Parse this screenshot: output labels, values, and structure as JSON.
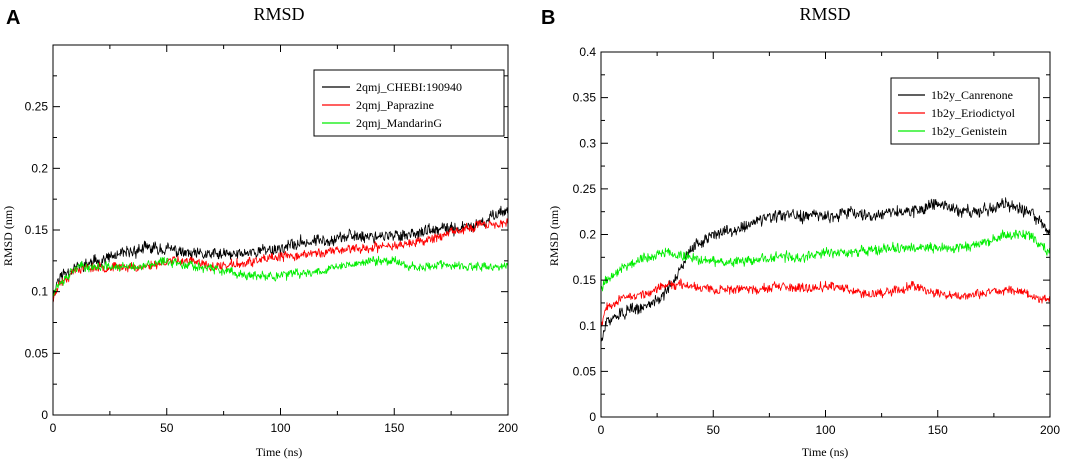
{
  "chart_data": [
    {
      "panel_letter": "A",
      "type": "line",
      "title": "RMSD",
      "xlabel": "Time (ns)",
      "ylabel": "RMSD (nm)",
      "xlim": [
        0,
        200
      ],
      "ylim": [
        0,
        0.3
      ],
      "xticks": [
        0,
        50,
        100,
        150,
        200
      ],
      "yticks": [
        0,
        0.05,
        0.1,
        0.15,
        0.2,
        0.25
      ],
      "ytick_labels": [
        "0",
        "0.05",
        "0.1",
        "0.15",
        "0.2",
        "0.25"
      ],
      "legend_position": "top-right",
      "series": [
        {
          "name": "2qmj_CHEBI:190940",
          "color": "#000000",
          "x": [
            0,
            2,
            5,
            10,
            20,
            30,
            40,
            50,
            60,
            70,
            80,
            90,
            100,
            110,
            120,
            130,
            140,
            150,
            160,
            170,
            180,
            190,
            195,
            200
          ],
          "y": [
            0.095,
            0.11,
            0.115,
            0.12,
            0.125,
            0.13,
            0.135,
            0.135,
            0.13,
            0.13,
            0.13,
            0.133,
            0.135,
            0.14,
            0.142,
            0.145,
            0.145,
            0.145,
            0.148,
            0.15,
            0.152,
            0.155,
            0.165,
            0.165
          ],
          "noise": 0.008,
          "seed": 11
        },
        {
          "name": "2qmj_Paprazine",
          "color": "#ff0000",
          "x": [
            0,
            2,
            5,
            10,
            20,
            30,
            40,
            50,
            60,
            70,
            80,
            90,
            100,
            110,
            120,
            130,
            140,
            150,
            160,
            170,
            180,
            190,
            195,
            200
          ],
          "y": [
            0.092,
            0.105,
            0.11,
            0.118,
            0.12,
            0.12,
            0.12,
            0.125,
            0.125,
            0.12,
            0.122,
            0.125,
            0.128,
            0.13,
            0.132,
            0.135,
            0.135,
            0.138,
            0.14,
            0.145,
            0.15,
            0.155,
            0.155,
            0.155
          ],
          "noise": 0.006,
          "seed": 23
        },
        {
          "name": "2qmj_MandarinG",
          "color": "#00ee00",
          "x": [
            0,
            2,
            5,
            10,
            20,
            30,
            40,
            50,
            60,
            70,
            80,
            90,
            100,
            110,
            120,
            130,
            140,
            150,
            160,
            170,
            180,
            190,
            195,
            200
          ],
          "y": [
            0.1,
            0.105,
            0.11,
            0.12,
            0.12,
            0.12,
            0.12,
            0.125,
            0.122,
            0.118,
            0.115,
            0.112,
            0.113,
            0.115,
            0.118,
            0.122,
            0.125,
            0.125,
            0.12,
            0.122,
            0.12,
            0.12,
            0.12,
            0.12
          ],
          "noise": 0.006,
          "seed": 37
        }
      ]
    },
    {
      "panel_letter": "B",
      "type": "line",
      "title": "RMSD",
      "xlabel": "Time (ns)",
      "ylabel": "RMSD (nm)",
      "xlim": [
        0,
        200
      ],
      "ylim": [
        0,
        0.4
      ],
      "xticks": [
        0,
        50,
        100,
        150,
        200
      ],
      "yticks": [
        0,
        0.05,
        0.1,
        0.15,
        0.2,
        0.25,
        0.3,
        0.35,
        0.4
      ],
      "ytick_labels": [
        "0",
        "0.05",
        "0.1",
        "0.15",
        "0.2",
        "0.25",
        "0.3",
        "0.35",
        "0.4"
      ],
      "legend_position": "top-right",
      "series": [
        {
          "name": "1b2y_Canrenone",
          "color": "#000000",
          "x": [
            0,
            2,
            5,
            10,
            20,
            30,
            35,
            40,
            50,
            60,
            70,
            80,
            90,
            100,
            110,
            120,
            130,
            140,
            150,
            160,
            170,
            180,
            190,
            195,
            200
          ],
          "y": [
            0.08,
            0.1,
            0.11,
            0.115,
            0.12,
            0.14,
            0.16,
            0.185,
            0.2,
            0.205,
            0.215,
            0.22,
            0.22,
            0.22,
            0.225,
            0.22,
            0.225,
            0.225,
            0.235,
            0.225,
            0.225,
            0.235,
            0.225,
            0.215,
            0.2
          ],
          "noise": 0.011,
          "seed": 51
        },
        {
          "name": "1b2y_Eriodictyol",
          "color": "#ff0000",
          "x": [
            0,
            2,
            5,
            10,
            20,
            30,
            40,
            50,
            60,
            70,
            80,
            90,
            100,
            110,
            120,
            130,
            140,
            150,
            160,
            170,
            180,
            190,
            195,
            200
          ],
          "y": [
            0.1,
            0.12,
            0.125,
            0.13,
            0.135,
            0.145,
            0.145,
            0.14,
            0.14,
            0.14,
            0.142,
            0.14,
            0.145,
            0.14,
            0.135,
            0.138,
            0.145,
            0.135,
            0.132,
            0.135,
            0.14,
            0.135,
            0.13,
            0.13
          ],
          "noise": 0.008,
          "seed": 67
        },
        {
          "name": "1b2y_Genistein",
          "color": "#00ee00",
          "x": [
            0,
            2,
            5,
            10,
            20,
            30,
            40,
            50,
            60,
            70,
            80,
            90,
            100,
            110,
            120,
            130,
            140,
            150,
            160,
            170,
            180,
            190,
            195,
            200
          ],
          "y": [
            0.14,
            0.15,
            0.155,
            0.165,
            0.175,
            0.18,
            0.175,
            0.17,
            0.17,
            0.172,
            0.175,
            0.175,
            0.18,
            0.18,
            0.182,
            0.185,
            0.185,
            0.185,
            0.185,
            0.19,
            0.2,
            0.2,
            0.19,
            0.18
          ],
          "noise": 0.009,
          "seed": 79
        }
      ]
    }
  ]
}
